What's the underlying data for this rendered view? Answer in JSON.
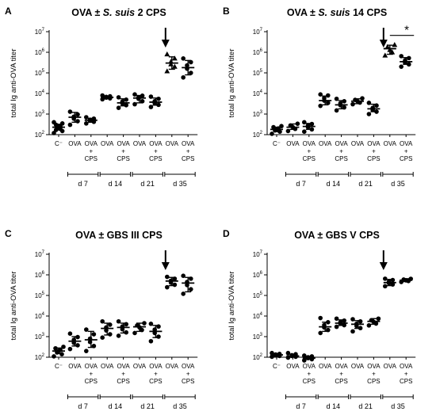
{
  "chart_data": [
    {
      "type": "scatter",
      "panel_label": "A",
      "title_parts": [
        {
          "text": "OVA ± ",
          "italic": false
        },
        {
          "text": "S. suis",
          "italic": true
        },
        {
          "text": " 2 CPS",
          "italic": false
        }
      ],
      "ylabel": "total Ig anti-OVA titer",
      "yscale": "log",
      "ylim": [
        100,
        10000000
      ],
      "yticks": [
        {
          "v": 100,
          "e": "2"
        },
        {
          "v": 1000,
          "e": "3"
        },
        {
          "v": 10000,
          "e": "4"
        },
        {
          "v": 100000,
          "e": "5"
        },
        {
          "v": 1000000,
          "e": "6"
        },
        {
          "v": 10000000,
          "e": "7"
        }
      ],
      "categories": [
        [
          "C⁻"
        ],
        [
          "OVA"
        ],
        [
          "OVA",
          "+",
          "CPS"
        ],
        [
          "OVA"
        ],
        [
          "OVA",
          "+",
          "CPS"
        ],
        [
          "OVA"
        ],
        [
          "OVA",
          "+",
          "CPS"
        ],
        [
          "OVA"
        ],
        [
          "OVA",
          "+",
          "CPS"
        ]
      ],
      "day_groups": [
        {
          "label": "d 7",
          "from": 1,
          "to": 2
        },
        {
          "label": "d 14",
          "from": 3,
          "to": 4
        },
        {
          "label": "d 21",
          "from": 5,
          "to": 6
        },
        {
          "label": "d 35",
          "from": 7,
          "to": 8
        }
      ],
      "arrow_at": 7,
      "significance": null,
      "groups": [
        {
          "center": 230,
          "lo": 170,
          "hi": 320,
          "marker": "circle",
          "points": [
            120,
            150,
            170,
            190,
            210,
            230,
            250,
            300,
            350,
            400
          ]
        },
        {
          "center": 700,
          "lo": 400,
          "hi": 1200,
          "marker": "circle",
          "points": [
            300,
            450,
            600,
            750,
            950,
            1300
          ]
        },
        {
          "center": 500,
          "lo": 400,
          "hi": 620,
          "marker": "circle",
          "points": [
            350,
            420,
            480,
            530,
            600,
            700
          ]
        },
        {
          "center": 6500,
          "lo": 5500,
          "hi": 7500,
          "marker": "circle",
          "points": [
            5200,
            5800,
            6300,
            6800,
            7300,
            8000
          ]
        },
        {
          "center": 3500,
          "lo": 2500,
          "hi": 5500,
          "marker": "circle",
          "points": [
            2000,
            2700,
            3300,
            4000,
            5000,
            6500
          ]
        },
        {
          "center": 6000,
          "lo": 3500,
          "hi": 8000,
          "marker": "circle",
          "points": [
            3000,
            4200,
            5500,
            6500,
            7800,
            9000
          ]
        },
        {
          "center": 3800,
          "lo": 2700,
          "hi": 6000,
          "marker": "circle",
          "points": [
            2200,
            2800,
            3400,
            4200,
            5500,
            7000
          ]
        },
        {
          "center": 300000,
          "lo": 150000,
          "hi": 600000,
          "marker": "triangle",
          "points": [
            120000,
            200000,
            260000,
            350000,
            500000,
            800000
          ]
        },
        {
          "center": 180000,
          "lo": 80000,
          "hi": 400000,
          "marker": "circle",
          "points": [
            60000,
            100000,
            160000,
            230000,
            330000,
            500000
          ]
        }
      ]
    },
    {
      "type": "scatter",
      "panel_label": "B",
      "title_parts": [
        {
          "text": "OVA ± ",
          "italic": false
        },
        {
          "text": "S. suis",
          "italic": true
        },
        {
          "text": " 14 CPS",
          "italic": false
        }
      ],
      "ylabel": "total Ig anti-OVA titer",
      "yscale": "log",
      "ylim": [
        100,
        10000000
      ],
      "yticks": [
        {
          "v": 100,
          "e": "2"
        },
        {
          "v": 1000,
          "e": "3"
        },
        {
          "v": 10000,
          "e": "4"
        },
        {
          "v": 100000,
          "e": "5"
        },
        {
          "v": 1000000,
          "e": "6"
        },
        {
          "v": 10000000,
          "e": "7"
        }
      ],
      "categories": [
        [
          "C⁻"
        ],
        [
          "OVA"
        ],
        [
          "OVA",
          "+",
          "CPS"
        ],
        [
          "OVA"
        ],
        [
          "OVA",
          "+",
          "CPS"
        ],
        [
          "OVA"
        ],
        [
          "OVA",
          "+",
          "CPS"
        ],
        [
          "OVA"
        ],
        [
          "OVA",
          "+",
          "CPS"
        ]
      ],
      "day_groups": [
        {
          "label": "d 7",
          "from": 1,
          "to": 2
        },
        {
          "label": "d 14",
          "from": 3,
          "to": 4
        },
        {
          "label": "d 21",
          "from": 5,
          "to": 6
        },
        {
          "label": "d 35",
          "from": 7,
          "to": 8
        }
      ],
      "arrow_at": 7,
      "significance": {
        "from": 7,
        "to": 8,
        "y": 1600000,
        "label": "*"
      },
      "groups": [
        {
          "center": 180,
          "lo": 140,
          "hi": 230,
          "marker": "circle",
          "points": [
            110,
            140,
            160,
            180,
            200,
            230,
            260
          ]
        },
        {
          "center": 230,
          "lo": 180,
          "hi": 330,
          "marker": "circle",
          "points": [
            150,
            190,
            230,
            280,
            340
          ]
        },
        {
          "center": 250,
          "lo": 180,
          "hi": 350,
          "marker": "circle",
          "points": [
            140,
            180,
            230,
            280,
            330,
            400
          ]
        },
        {
          "center": 4500,
          "lo": 2800,
          "hi": 7500,
          "marker": "circle",
          "points": [
            2500,
            3500,
            4500,
            6000,
            8000,
            9000
          ]
        },
        {
          "center": 2800,
          "lo": 1800,
          "hi": 4500,
          "marker": "circle",
          "points": [
            1500,
            2100,
            2700,
            3300,
            4200,
            5500
          ]
        },
        {
          "center": 4200,
          "lo": 3200,
          "hi": 5500,
          "marker": "circle",
          "points": [
            3000,
            3600,
            4200,
            4900,
            5800
          ]
        },
        {
          "center": 1800,
          "lo": 1300,
          "hi": 3000,
          "marker": "circle",
          "points": [
            1000,
            1300,
            1600,
            2000,
            2600,
            3500
          ]
        },
        {
          "center": 1500000,
          "lo": 800000,
          "hi": 2200000,
          "marker": "triangle",
          "points": [
            700000,
            1000000,
            1300000,
            1800000,
            2300000
          ]
        },
        {
          "center": 350000,
          "lo": 260000,
          "hi": 550000,
          "marker": "circle",
          "points": [
            200000,
            260000,
            320000,
            400000,
            520000,
            650000
          ]
        }
      ]
    },
    {
      "type": "scatter",
      "panel_label": "C",
      "title_parts": [
        {
          "text": "OVA ± GBS III CPS",
          "italic": false
        }
      ],
      "ylabel": "total Ig anti-OVA titer",
      "yscale": "log",
      "ylim": [
        100,
        10000000
      ],
      "yticks": [
        {
          "v": 100,
          "e": "2"
        },
        {
          "v": 1000,
          "e": "3"
        },
        {
          "v": 10000,
          "e": "4"
        },
        {
          "v": 100000,
          "e": "5"
        },
        {
          "v": 1000000,
          "e": "6"
        },
        {
          "v": 10000000,
          "e": "7"
        }
      ],
      "categories": [
        [
          "C⁻"
        ],
        [
          "OVA"
        ],
        [
          "OVA",
          "+",
          "CPS"
        ],
        [
          "OVA"
        ],
        [
          "OVA",
          "+",
          "CPS"
        ],
        [
          "OVA"
        ],
        [
          "OVA",
          "+",
          "CPS"
        ],
        [
          "OVA"
        ],
        [
          "OVA",
          "+",
          "CPS"
        ]
      ],
      "day_groups": [
        {
          "label": "d 7",
          "from": 1,
          "to": 2
        },
        {
          "label": "d 14",
          "from": 3,
          "to": 4
        },
        {
          "label": "d 21",
          "from": 5,
          "to": 6
        },
        {
          "label": "d 35",
          "from": 7,
          "to": 8
        }
      ],
      "arrow_at": 7,
      "significance": null,
      "groups": [
        {
          "center": 200,
          "lo": 150,
          "hi": 280,
          "marker": "circle",
          "points": [
            110,
            140,
            170,
            200,
            230,
            270,
            320
          ]
        },
        {
          "center": 600,
          "lo": 350,
          "hi": 1000,
          "marker": "circle",
          "points": [
            250,
            380,
            500,
            700,
            950,
            1400
          ]
        },
        {
          "center": 700,
          "lo": 300,
          "hi": 1800,
          "marker": "circle",
          "points": [
            200,
            350,
            550,
            800,
            1300,
            2200
          ]
        },
        {
          "center": 2500,
          "lo": 1200,
          "hi": 4500,
          "marker": "circle",
          "points": [
            900,
            1300,
            2000,
            2800,
            3800,
            5500
          ]
        },
        {
          "center": 2800,
          "lo": 1500,
          "hi": 4500,
          "marker": "circle",
          "points": [
            1100,
            1600,
            2300,
            3100,
            4000,
            5500
          ]
        },
        {
          "center": 3000,
          "lo": 1800,
          "hi": 4500,
          "marker": "circle",
          "points": [
            1500,
            2100,
            2800,
            3500,
            4500
          ]
        },
        {
          "center": 1800,
          "lo": 900,
          "hi": 3500,
          "marker": "circle",
          "points": [
            600,
            1000,
            1500,
            2200,
            3100,
            4200
          ]
        },
        {
          "center": 500000,
          "lo": 300000,
          "hi": 750000,
          "marker": "circle",
          "points": [
            250000,
            330000,
            420000,
            520000,
            650000,
            800000
          ]
        },
        {
          "center": 400000,
          "lo": 150000,
          "hi": 750000,
          "marker": "circle",
          "points": [
            120000,
            200000,
            320000,
            450000,
            650000,
            900000
          ]
        }
      ]
    },
    {
      "type": "scatter",
      "panel_label": "D",
      "title_parts": [
        {
          "text": "OVA ± GBS V CPS",
          "italic": false
        }
      ],
      "ylabel": "total Ig anti-OVA titer",
      "yscale": "log",
      "ylim": [
        100,
        10000000
      ],
      "yticks": [
        {
          "v": 100,
          "e": "2"
        },
        {
          "v": 1000,
          "e": "3"
        },
        {
          "v": 10000,
          "e": "4"
        },
        {
          "v": 100000,
          "e": "5"
        },
        {
          "v": 1000000,
          "e": "6"
        },
        {
          "v": 10000000,
          "e": "7"
        }
      ],
      "categories": [
        [
          "C⁻"
        ],
        [
          "OVA"
        ],
        [
          "OVA",
          "+",
          "CPS"
        ],
        [
          "OVA"
        ],
        [
          "OVA",
          "+",
          "CPS"
        ],
        [
          "OVA"
        ],
        [
          "OVA",
          "+",
          "CPS"
        ],
        [
          "OVA"
        ],
        [
          "OVA",
          "+",
          "CPS"
        ]
      ],
      "day_groups": [
        {
          "label": "d 7",
          "from": 1,
          "to": 2
        },
        {
          "label": "d 14",
          "from": 3,
          "to": 4
        },
        {
          "label": "d 21",
          "from": 5,
          "to": 6
        },
        {
          "label": "d 35",
          "from": 7,
          "to": 8
        }
      ],
      "arrow_at": 7,
      "significance": null,
      "groups": [
        {
          "center": 130,
          "lo": 115,
          "hi": 150,
          "marker": "circle",
          "points": [
            105,
            115,
            125,
            135,
            145,
            160
          ]
        },
        {
          "center": 115,
          "lo": 100,
          "hi": 140,
          "marker": "circle",
          "points": [
            95,
            105,
            115,
            125,
            140,
            160
          ]
        },
        {
          "center": 90,
          "lo": 80,
          "hi": 110,
          "marker": "circle",
          "points": [
            70,
            80,
            90,
            100,
            110,
            120
          ]
        },
        {
          "center": 3000,
          "lo": 1800,
          "hi": 5000,
          "marker": "circle",
          "points": [
            1500,
            2100,
            2800,
            3600,
            5000,
            8000
          ]
        },
        {
          "center": 4500,
          "lo": 3500,
          "hi": 6500,
          "marker": "circle",
          "points": [
            3000,
            3600,
            4300,
            5000,
            6000,
            7500
          ]
        },
        {
          "center": 4000,
          "lo": 2500,
          "hi": 6000,
          "marker": "circle",
          "points": [
            1800,
            2600,
            3300,
            4200,
            5500,
            7000
          ]
        },
        {
          "center": 5500,
          "lo": 4000,
          "hi": 7500,
          "marker": "circle",
          "points": [
            3500,
            4300,
            5200,
            6200,
            7500
          ]
        },
        {
          "center": 420000,
          "lo": 300000,
          "hi": 600000,
          "marker": "circle",
          "points": [
            280000,
            340000,
            400000,
            470000,
            560000,
            650000
          ]
        },
        {
          "center": 550000,
          "lo": 470000,
          "hi": 650000,
          "marker": "circle",
          "points": [
            450000,
            500000,
            540000,
            590000,
            640000
          ]
        }
      ]
    }
  ]
}
